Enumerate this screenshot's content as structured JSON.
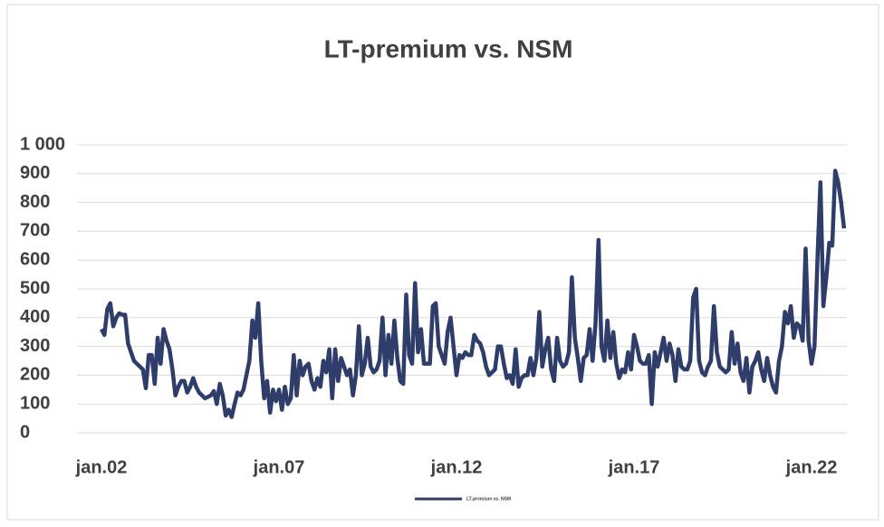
{
  "chart_data": {
    "type": "line",
    "title": "LT-premium vs. NSM",
    "categories": [
      "jan.02",
      null,
      null,
      null,
      null,
      null,
      null,
      null,
      null,
      null,
      null,
      null,
      null,
      null,
      null,
      null,
      null,
      null,
      null,
      null,
      null,
      null,
      null,
      null,
      null,
      null,
      null,
      null,
      null,
      null,
      null,
      null,
      null,
      null,
      null,
      null,
      null,
      null,
      null,
      null,
      null,
      null,
      null,
      null,
      null,
      null,
      null,
      null,
      null,
      null,
      null,
      null,
      null,
      null,
      null,
      null,
      null,
      null,
      null,
      null,
      "jan.07",
      null,
      null,
      null,
      null,
      null,
      null,
      null,
      null,
      null,
      null,
      null,
      null,
      null,
      null,
      null,
      null,
      null,
      null,
      null,
      null,
      null,
      null,
      null,
      null,
      null,
      null,
      null,
      null,
      null,
      null,
      null,
      null,
      null,
      null,
      null,
      null,
      null,
      null,
      null,
      null,
      null,
      null,
      null,
      null,
      null,
      null,
      null,
      null,
      null,
      null,
      null,
      null,
      null,
      null,
      null,
      null,
      null,
      null,
      null,
      "jan.12",
      null,
      null,
      null,
      null,
      null,
      null,
      null,
      null,
      null,
      null,
      null,
      null,
      null,
      null,
      null,
      null,
      null,
      null,
      null,
      null,
      null,
      null,
      null,
      null,
      null,
      null,
      null,
      null,
      null,
      null,
      null,
      null,
      null,
      null,
      null,
      null,
      null,
      null,
      null,
      null,
      null,
      null,
      null,
      null,
      null,
      null,
      null,
      null,
      null,
      null,
      null,
      null,
      null,
      null,
      null,
      null,
      null,
      null,
      null,
      "jan.17",
      null,
      null,
      null,
      null,
      null,
      null,
      null,
      null,
      null,
      null,
      null,
      null,
      null,
      null,
      null,
      null,
      null,
      null,
      null,
      null,
      null,
      null,
      null,
      null,
      null,
      null,
      null,
      null,
      null,
      null,
      null,
      null,
      null,
      null,
      null,
      null,
      null,
      null,
      null,
      null,
      null,
      null,
      null,
      null,
      null,
      null,
      null,
      null,
      null,
      null,
      null,
      null,
      null,
      null,
      null,
      null,
      null,
      null,
      null,
      "jan.22",
      null,
      null,
      null,
      null,
      null,
      null,
      null,
      null,
      null,
      null,
      null
    ],
    "series": [
      {
        "name": "LT-premium vs. NSM",
        "color": "#2f3d6b",
        "values": [
          360,
          340,
          430,
          450,
          370,
          400,
          415,
          410,
          410,
          310,
          280,
          250,
          240,
          230,
          220,
          155,
          270,
          270,
          170,
          330,
          240,
          360,
          320,
          290,
          220,
          130,
          160,
          180,
          180,
          140,
          160,
          190,
          160,
          140,
          130,
          120,
          125,
          130,
          145,
          100,
          170,
          130,
          60,
          80,
          55,
          100,
          140,
          130,
          150,
          200,
          250,
          390,
          330,
          450,
          250,
          120,
          180,
          70,
          150,
          110,
          150,
          80,
          160,
          100,
          120,
          270,
          130,
          250,
          200,
          230,
          240,
          180,
          150,
          190,
          160,
          250,
          210,
          290,
          120,
          290,
          180,
          260,
          230,
          200,
          220,
          130,
          200,
          370,
          200,
          240,
          330,
          230,
          210,
          220,
          250,
          400,
          200,
          340,
          240,
          390,
          260,
          180,
          170,
          480,
          270,
          240,
          520,
          280,
          360,
          240,
          240,
          240,
          440,
          450,
          300,
          270,
          240,
          350,
          400,
          300,
          200,
          270,
          260,
          280,
          270,
          270,
          340,
          320,
          310,
          280,
          230,
          200,
          210,
          220,
          300,
          300,
          240,
          190,
          200,
          170,
          290,
          160,
          190,
          200,
          200,
          260,
          200,
          260,
          420,
          230,
          290,
          330,
          220,
          180,
          330,
          250,
          230,
          240,
          280,
          540,
          330,
          260,
          180,
          260,
          270,
          360,
          250,
          380,
          670,
          300,
          250,
          390,
          260,
          350,
          240,
          190,
          220,
          210,
          280,
          220,
          340,
          300,
          250,
          240,
          240,
          270,
          100,
          280,
          230,
          280,
          330,
          250,
          310,
          270,
          180,
          290,
          230,
          220,
          220,
          250,
          470,
          500,
          250,
          210,
          200,
          230,
          250,
          440,
          280,
          230,
          220,
          210,
          220,
          350,
          240,
          310,
          210,
          180,
          260,
          140,
          230,
          250,
          280,
          220,
          180,
          260,
          200,
          160,
          140,
          250,
          300,
          420,
          380,
          440,
          330,
          380,
          370,
          320,
          640,
          320,
          240,
          300,
          600,
          870,
          440,
          540,
          660,
          650,
          910,
          870,
          800,
          710
        ]
      }
    ],
    "ylim": [
      0,
      1000
    ],
    "yticks": [
      0,
      100,
      200,
      300,
      400,
      500,
      600,
      700,
      800,
      900,
      {
        "value": 1000,
        "label": "1 000"
      }
    ],
    "grid": true,
    "legend": "bottom"
  }
}
